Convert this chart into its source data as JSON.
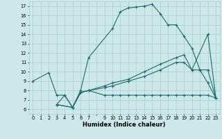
{
  "xlabel": "Humidex (Indice chaleur)",
  "bg_color": "#cce8e8",
  "grid_color": "#aacccc",
  "line_color": "#1a6b6b",
  "xlim": [
    -0.5,
    23.5
  ],
  "ylim": [
    5.5,
    17.5
  ],
  "yticks": [
    6,
    7,
    8,
    9,
    10,
    11,
    12,
    13,
    14,
    15,
    16,
    17
  ],
  "line1_x": [
    0,
    2,
    3,
    4,
    5,
    6,
    7,
    10,
    11,
    12,
    13,
    14,
    15,
    16,
    17,
    18,
    19,
    20,
    21,
    22,
    23
  ],
  "line1_y": [
    9.0,
    9.9,
    7.5,
    7.5,
    6.2,
    8.0,
    11.5,
    14.6,
    16.4,
    16.8,
    16.9,
    17.0,
    17.2,
    16.2,
    15.0,
    15.0,
    13.8,
    12.5,
    10.2,
    8.8,
    7.2
  ],
  "line2_x": [
    3,
    4,
    5,
    6,
    7,
    9,
    10,
    11,
    12,
    13,
    14,
    15,
    16,
    17,
    18,
    19,
    20,
    21,
    22,
    23
  ],
  "line2_y": [
    6.5,
    7.5,
    6.2,
    7.8,
    8.0,
    7.5,
    7.5,
    7.5,
    7.5,
    7.5,
    7.5,
    7.5,
    7.5,
    7.5,
    7.5,
    7.5,
    7.5,
    7.5,
    7.5,
    7.2
  ],
  "line3_x": [
    3,
    5,
    6,
    7,
    9,
    10,
    12,
    14,
    16,
    18,
    19,
    20,
    21,
    22,
    23
  ],
  "line3_y": [
    6.5,
    6.2,
    7.8,
    8.0,
    8.5,
    8.8,
    9.2,
    10.0,
    10.8,
    11.5,
    11.8,
    10.2,
    10.2,
    10.2,
    7.2
  ],
  "line4_x": [
    3,
    5,
    6,
    7,
    9,
    10,
    12,
    14,
    16,
    18,
    19,
    20,
    22,
    23
  ],
  "line4_y": [
    6.5,
    6.2,
    7.8,
    8.0,
    8.3,
    8.5,
    9.0,
    9.5,
    10.2,
    11.0,
    11.0,
    10.2,
    14.0,
    7.2
  ]
}
